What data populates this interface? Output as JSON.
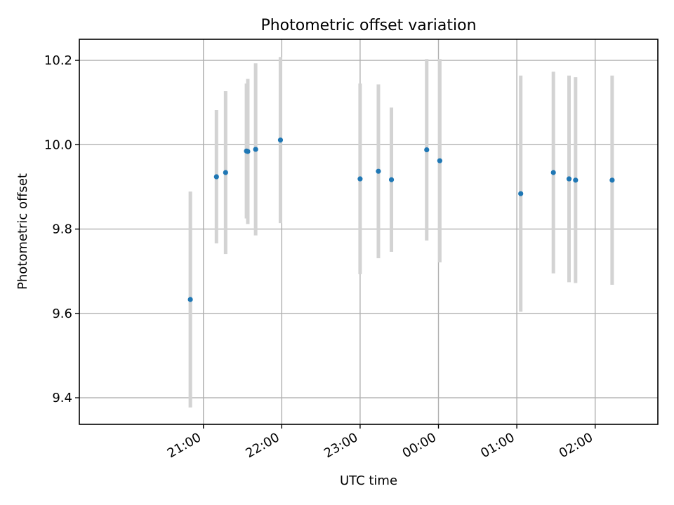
{
  "chart_data": {
    "type": "scatter",
    "title": "Photometric offset variation",
    "xlabel": "UTC time",
    "ylabel": "Photometric offset",
    "ylim": [
      9.337,
      10.25
    ],
    "x_ticks": [
      "21:00",
      "22:00",
      "23:00",
      "00:00",
      "01:00",
      "02:00"
    ],
    "y_ticks": [
      "9.4",
      "9.6",
      "9.8",
      "10.0",
      "10.2"
    ],
    "grid": true,
    "legend": "none",
    "colors": {
      "points": "#1f77b4",
      "error_bars": "#d3d3d3"
    },
    "series": [
      {
        "points": [
          {
            "x": "20:50",
            "y": 9.633,
            "err_low": 9.377,
            "err_high": 9.889
          },
          {
            "x": "21:10",
            "y": 9.924,
            "err_low": 9.766,
            "err_high": 10.082
          },
          {
            "x": "21:17",
            "y": 9.934,
            "err_low": 9.741,
            "err_high": 10.127
          },
          {
            "x": "21:33",
            "y": 9.985,
            "err_low": 9.825,
            "err_high": 10.145
          },
          {
            "x": "21:34",
            "y": 9.984,
            "err_low": 9.812,
            "err_high": 10.156
          },
          {
            "x": "21:40",
            "y": 9.989,
            "err_low": 9.785,
            "err_high": 10.193
          },
          {
            "x": "21:59",
            "y": 10.011,
            "err_low": 9.814,
            "err_high": 10.208
          },
          {
            "x": "23:00",
            "y": 9.919,
            "err_low": 9.693,
            "err_high": 10.145
          },
          {
            "x": "23:14",
            "y": 9.937,
            "err_low": 9.731,
            "err_high": 10.143
          },
          {
            "x": "23:24",
            "y": 9.917,
            "err_low": 9.746,
            "err_high": 10.088
          },
          {
            "x": "23:51",
            "y": 9.988,
            "err_low": 9.773,
            "err_high": 10.203
          },
          {
            "x": "00:01",
            "y": 9.962,
            "err_low": 9.721,
            "err_high": 10.203
          },
          {
            "x": "01:03",
            "y": 9.884,
            "err_low": 9.604,
            "err_high": 10.164
          },
          {
            "x": "01:28",
            "y": 9.934,
            "err_low": 9.695,
            "err_high": 10.173
          },
          {
            "x": "01:40",
            "y": 9.919,
            "err_low": 9.674,
            "err_high": 10.164
          },
          {
            "x": "01:45",
            "y": 9.916,
            "err_low": 9.672,
            "err_high": 10.16
          },
          {
            "x": "02:13",
            "y": 9.916,
            "err_low": 9.668,
            "err_high": 10.164
          }
        ]
      }
    ]
  }
}
